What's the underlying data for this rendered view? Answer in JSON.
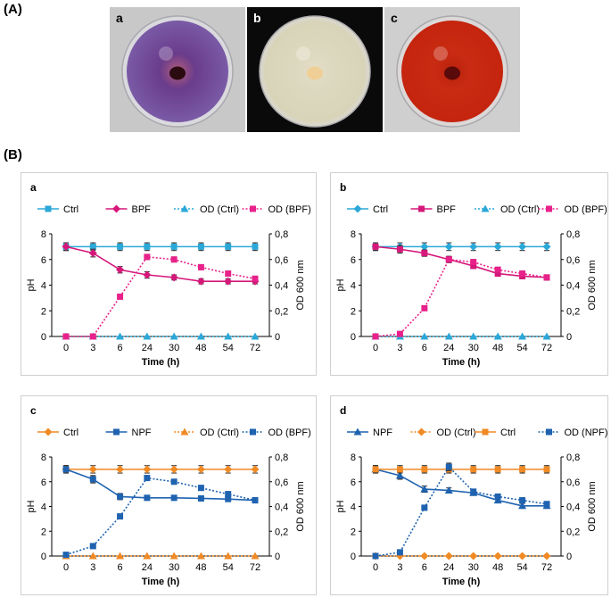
{
  "figure": {
    "section_a_label": "(A)",
    "section_b_label": "(B)"
  },
  "plates": [
    {
      "label": "a",
      "background": "#c8c8c8",
      "dish": "#d9d9de",
      "agar_outer": "#7a5aa6",
      "agar_inner": "#6a3c8c",
      "halo": "#b15c7a",
      "colony": "#2a0b10"
    },
    {
      "label": "b",
      "background": "#0a0a0a",
      "dish": "#d9d6c8",
      "agar_outer": "#d8d4b8",
      "agar_inner": "#ddd9c0",
      "halo": "#e3ddc4",
      "colony": "#f0cf96"
    },
    {
      "label": "c",
      "background": "#cfcfcf",
      "dish": "#dcd8d8",
      "agar_outer": "#c5240e",
      "agar_inner": "#c82b12",
      "halo": "#b8200c",
      "colony": "#5a0a0a"
    }
  ],
  "chart_data": [
    {
      "type": "line",
      "panel_label": "a",
      "x": [
        "0",
        "3",
        "6",
        "24",
        "30",
        "48",
        "54",
        "72"
      ],
      "xlabel": "Time (h)",
      "ylabel": "pH",
      "y2label": "OD 600 nm",
      "ylim": [
        0,
        8
      ],
      "yticks": [
        "0",
        "2",
        "4",
        "6",
        "8"
      ],
      "y2lim": [
        0,
        0.8
      ],
      "y2ticks": [
        "0",
        "0,2",
        "0,4",
        "0,6",
        "0,8"
      ],
      "legend": "top",
      "series": [
        {
          "name": "Ctrl",
          "axis": "left",
          "color": "#2ba8d8",
          "marker": "square",
          "dashed": false,
          "values": [
            7,
            7,
            7,
            7,
            7,
            7,
            7,
            7
          ],
          "errors": [
            0.3,
            0.3,
            0.3,
            0.3,
            0.3,
            0.3,
            0.3,
            0.3
          ]
        },
        {
          "name": "BPF",
          "axis": "left",
          "color": "#d6187a",
          "marker": "diamond",
          "dashed": false,
          "values": [
            7,
            6.5,
            5.2,
            4.8,
            4.6,
            4.3,
            4.3,
            4.3
          ],
          "errors": [
            0.3,
            0.3,
            0.25,
            0.25,
            0.2,
            0.2,
            0.2,
            0.2
          ]
        },
        {
          "name": "OD (Ctrl)",
          "axis": "right",
          "color": "#2ba8d8",
          "marker": "triangle",
          "dashed": true,
          "values": [
            0,
            0,
            0,
            0,
            0,
            0,
            0,
            0
          ],
          "errors": [
            0,
            0,
            0,
            0,
            0,
            0,
            0,
            0
          ]
        },
        {
          "name": "OD (BPF)",
          "axis": "right",
          "color": "#e8228a",
          "marker": "square",
          "dashed": true,
          "values": [
            0,
            0,
            0.31,
            0.62,
            0.6,
            0.54,
            0.49,
            0.45
          ],
          "errors": [
            0,
            0,
            0,
            0.02,
            0.02,
            0.02,
            0.02,
            0.02
          ]
        }
      ]
    },
    {
      "type": "line",
      "panel_label": "b",
      "x": [
        "0",
        "3",
        "6",
        "24",
        "30",
        "48",
        "54",
        "72"
      ],
      "xlabel": "Time (h)",
      "ylabel": "pH",
      "y2label": "OD 600 nm",
      "ylim": [
        0,
        8
      ],
      "yticks": [
        "0",
        "2",
        "4",
        "6",
        "8"
      ],
      "y2lim": [
        0,
        0.8
      ],
      "y2ticks": [
        "0",
        "0,2",
        "0,4",
        "0,6",
        "0,8"
      ],
      "legend": "top",
      "series": [
        {
          "name": "Ctrl",
          "axis": "left",
          "color": "#2ba8d8",
          "marker": "diamond",
          "dashed": false,
          "values": [
            7,
            7,
            7,
            7,
            7,
            7,
            7,
            7
          ],
          "errors": [
            0.3,
            0.3,
            0.3,
            0.3,
            0.3,
            0.3,
            0.3,
            0.3
          ]
        },
        {
          "name": "BPF",
          "axis": "left",
          "color": "#d6187a",
          "marker": "square",
          "dashed": false,
          "values": [
            7,
            6.8,
            6.5,
            6,
            5.5,
            4.9,
            4.7,
            4.6
          ],
          "errors": [
            0.3,
            0.3,
            0.25,
            0.25,
            0.2,
            0.2,
            0.2,
            0.2
          ]
        },
        {
          "name": "OD (Ctrl)",
          "axis": "right",
          "color": "#2ba8d8",
          "marker": "triangle",
          "dashed": true,
          "values": [
            0,
            0,
            0,
            0,
            0,
            0,
            0,
            0
          ],
          "errors": [
            0,
            0,
            0,
            0,
            0,
            0,
            0,
            0
          ]
        },
        {
          "name": "OD (BPF)",
          "axis": "right",
          "color": "#e8228a",
          "marker": "square",
          "dashed": true,
          "values": [
            0,
            0.02,
            0.22,
            0.6,
            0.58,
            0.52,
            0.49,
            0.46
          ],
          "errors": [
            0,
            0,
            0,
            0.02,
            0.02,
            0.02,
            0.02,
            0.02
          ]
        }
      ]
    },
    {
      "type": "line",
      "panel_label": "c",
      "x": [
        "0",
        "3",
        "6",
        "24",
        "30",
        "48",
        "54",
        "72"
      ],
      "xlabel": "Time (h)",
      "ylabel": "pH",
      "y2label": "OD 600 nm",
      "ylim": [
        0,
        8
      ],
      "yticks": [
        "0",
        "2",
        "4",
        "6",
        "8"
      ],
      "y2lim": [
        0,
        0.8
      ],
      "y2ticks": [
        "0",
        "0,2",
        "0,4",
        "0,6",
        "0,8"
      ],
      "legend": "top",
      "series": [
        {
          "name": "Ctrl",
          "axis": "left",
          "color": "#f08a24",
          "marker": "diamond",
          "dashed": false,
          "values": [
            7,
            7,
            7,
            7,
            7,
            7,
            7,
            7
          ],
          "errors": [
            0.3,
            0.3,
            0.3,
            0.3,
            0.3,
            0.3,
            0.3,
            0.3
          ]
        },
        {
          "name": "NPF",
          "axis": "left",
          "color": "#1f63b0",
          "marker": "square",
          "dashed": false,
          "values": [
            7,
            6.2,
            4.8,
            4.7,
            4.7,
            4.65,
            4.6,
            4.5
          ],
          "errors": [
            0.3,
            0.3,
            0.25,
            0.2,
            0.2,
            0.2,
            0.2,
            0.2
          ]
        },
        {
          "name": "OD (Ctrl)",
          "axis": "right",
          "color": "#f08a24",
          "marker": "triangle",
          "dashed": true,
          "values": [
            0,
            0,
            0,
            0,
            0,
            0,
            0,
            0
          ],
          "errors": [
            0,
            0,
            0,
            0,
            0,
            0,
            0,
            0
          ]
        },
        {
          "name": "OD (BPF)",
          "axis": "right",
          "color": "#1f63b0",
          "marker": "square",
          "dashed": true,
          "values": [
            0.01,
            0.08,
            0.32,
            0.63,
            0.6,
            0.55,
            0.5,
            0.45
          ],
          "errors": [
            0,
            0,
            0,
            0.02,
            0.02,
            0.02,
            0.02,
            0.02
          ]
        }
      ]
    },
    {
      "type": "line",
      "panel_label": "d",
      "x": [
        "0",
        "3",
        "6",
        "24",
        "30",
        "48",
        "54",
        "72"
      ],
      "xlabel": "Time (h)",
      "ylabel": "pH",
      "y2label": "OD 600 nm",
      "ylim": [
        0,
        8
      ],
      "yticks": [
        "0",
        "2",
        "4",
        "6",
        "8"
      ],
      "y2lim": [
        0,
        0.8
      ],
      "y2ticks": [
        "0",
        "0,2",
        "0,4",
        "0,6",
        "0,8"
      ],
      "legend": "top",
      "series": [
        {
          "name": "NPF",
          "axis": "left",
          "color": "#1f63b0",
          "marker": "triangle",
          "dashed": false,
          "values": [
            7,
            6.5,
            5.4,
            5.3,
            5.1,
            4.5,
            4.05,
            4.05
          ],
          "errors": [
            0.3,
            0.3,
            0.25,
            0.2,
            0.2,
            0.2,
            0.2,
            0.2
          ]
        },
        {
          "name": "OD (Ctrl)",
          "axis": "right",
          "color": "#f08a24",
          "marker": "diamond",
          "dashed": true,
          "values": [
            0,
            0,
            0,
            0,
            0,
            0,
            0,
            0
          ],
          "errors": [
            0,
            0,
            0,
            0,
            0,
            0,
            0,
            0
          ]
        },
        {
          "name": "Ctrl",
          "axis": "left",
          "color": "#f08a24",
          "marker": "square",
          "dashed": false,
          "values": [
            7,
            7,
            7,
            7,
            7,
            7,
            7,
            7
          ],
          "errors": [
            0.3,
            0.3,
            0.3,
            0.3,
            0.3,
            0.3,
            0.3,
            0.3
          ]
        },
        {
          "name": "OD (NPF)",
          "axis": "right",
          "color": "#1f63b0",
          "marker": "square",
          "dashed": true,
          "values": [
            0,
            0.03,
            0.39,
            0.72,
            0.52,
            0.48,
            0.45,
            0.42
          ],
          "errors": [
            0,
            0.01,
            0.02,
            0.03,
            0.02,
            0.02,
            0.02,
            0.02
          ]
        }
      ]
    }
  ]
}
